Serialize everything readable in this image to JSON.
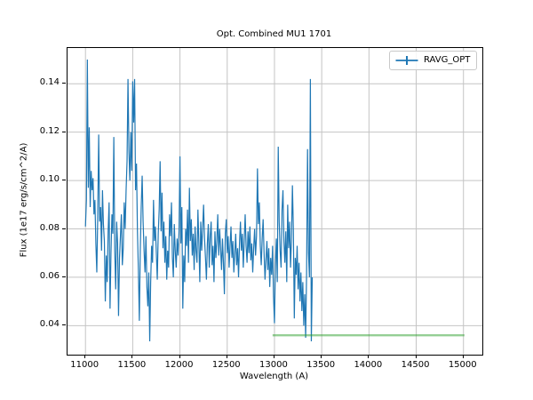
{
  "chart": {
    "window_background": "#ffffff"
  },
  "chart_data": {
    "type": "line",
    "title": "Opt. Combined MU1 1701",
    "xlabel": "Wavelength (A)",
    "ylabel": "Flux (1e17 erg/s/cm^2/A)",
    "grid": true,
    "legend_position": "upper right",
    "xlim": [
      10810,
      15200
    ],
    "ylim": [
      0.028,
      0.1548
    ],
    "xticks": [
      11000,
      11500,
      12000,
      12500,
      13000,
      13500,
      14000,
      14500,
      15000
    ],
    "xtick_labels": [
      "11000",
      "11500",
      "12000",
      "12500",
      "13000",
      "13500",
      "14000",
      "14500",
      "15000"
    ],
    "yticks": [
      0.04,
      0.06,
      0.08,
      0.1,
      0.12,
      0.14
    ],
    "ytick_labels": [
      "0.04",
      "0.06",
      "0.08",
      "0.10",
      "0.12",
      "0.14"
    ],
    "colors": {
      "series": "#1f77b4",
      "reference": "#2ca02c",
      "reference_alpha": 0.5,
      "grid": "#c4c4c4",
      "spine": "#000000"
    },
    "series": [
      {
        "name": "RAVG_OPT",
        "kind": "errorbar-line",
        "color": "#1f77b4",
        "in_legend": true,
        "x_start": 11000,
        "x_step": 10,
        "y": [
          0.081,
          0.092,
          0.15,
          0.097,
          0.122,
          0.089,
          0.104,
          0.096,
          0.101,
          0.086,
          0.092,
          0.074,
          0.062,
          0.086,
          0.119,
          0.083,
          0.089,
          0.071,
          0.096,
          0.082,
          0.075,
          0.05,
          0.069,
          0.058,
          0.079,
          0.091,
          0.047,
          0.07,
          0.086,
          0.078,
          0.118,
          0.071,
          0.055,
          0.083,
          0.074,
          0.044,
          0.068,
          0.077,
          0.086,
          0.065,
          0.072,
          0.091,
          0.08,
          0.096,
          0.108,
          0.142,
          0.112,
          0.1,
          0.12,
          0.104,
          0.141,
          0.124,
          0.142,
          0.096,
          0.107,
          0.079,
          0.063,
          0.042,
          0.071,
          0.089,
          0.102,
          0.083,
          0.071,
          0.062,
          0.077,
          0.056,
          0.048,
          0.062,
          0.0335,
          0.058,
          0.073,
          0.066,
          0.092,
          0.075,
          0.081,
          0.07,
          0.059,
          0.078,
          0.088,
          0.108,
          0.079,
          0.095,
          0.072,
          0.083,
          0.066,
          0.077,
          0.059,
          0.071,
          0.064,
          0.086,
          0.077,
          0.091,
          0.068,
          0.06,
          0.082,
          0.071,
          0.064,
          0.076,
          0.069,
          0.079,
          0.11,
          0.074,
          0.089,
          0.047,
          0.069,
          0.058,
          0.08,
          0.073,
          0.088,
          0.066,
          0.097,
          0.075,
          0.084,
          0.069,
          0.078,
          0.063,
          0.081,
          0.071,
          0.066,
          0.088,
          0.074,
          0.058,
          0.083,
          0.071,
          0.08,
          0.09,
          0.076,
          0.068,
          0.059,
          0.074,
          0.082,
          0.064,
          0.077,
          0.083,
          0.065,
          0.073,
          0.058,
          0.079,
          0.068,
          0.075,
          0.086,
          0.069,
          0.08,
          0.072,
          0.063,
          0.076,
          0.066,
          0.053,
          0.078,
          0.084,
          0.07,
          0.077,
          0.064,
          0.073,
          0.081,
          0.068,
          0.075,
          0.062,
          0.07,
          0.078,
          0.065,
          0.072,
          0.06,
          0.074,
          0.083,
          0.071,
          0.078,
          0.064,
          0.075,
          0.086,
          0.073,
          0.066,
          0.079,
          0.07,
          0.081,
          0.067,
          0.074,
          0.062,
          0.072,
          0.08,
          0.069,
          0.077,
          0.105,
          0.082,
          0.091,
          0.073,
          0.065,
          0.076,
          0.084,
          0.07,
          0.059,
          0.067,
          0.075,
          0.063,
          0.072,
          0.056,
          0.068,
          0.061,
          0.073,
          0.052,
          0.041,
          0.065,
          0.076,
          0.058,
          0.114,
          0.083,
          0.071,
          0.064,
          0.088,
          0.096,
          0.075,
          0.066,
          0.079,
          0.058,
          0.09,
          0.072,
          0.083,
          0.064,
          0.076,
          0.098,
          0.08,
          0.043,
          0.068,
          0.061,
          0.073,
          0.055,
          0.066,
          0.05,
          0.062,
          0.046,
          0.058,
          0.04,
          0.053,
          0.035,
          0.062,
          0.113,
          0.07,
          0.06,
          0.142,
          0.0335,
          0.06
        ]
      },
      {
        "name": "reference-level",
        "kind": "hline",
        "color": "#2ca02c",
        "in_legend": false,
        "x": [
          12980,
          15010
        ],
        "y_value": 0.036
      }
    ]
  },
  "legend": {
    "entries": [
      {
        "label": "RAVG_OPT",
        "color": "#1f77b4",
        "marker": "errorbar"
      }
    ]
  }
}
